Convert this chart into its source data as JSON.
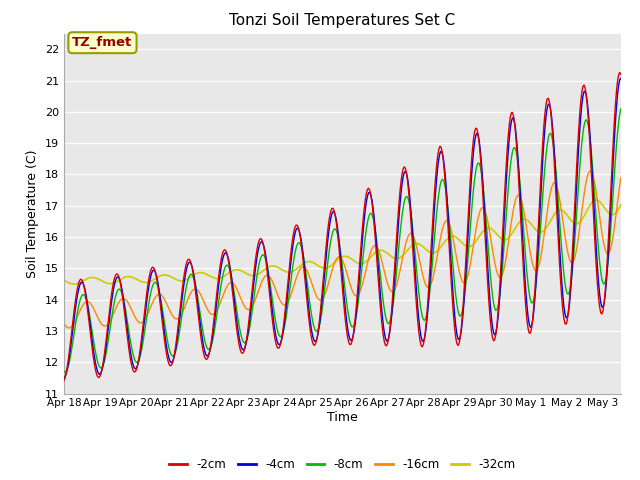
{
  "title": "Tonzi Soil Temperatures Set C",
  "xlabel": "Time",
  "ylabel": "Soil Temperature (C)",
  "ylim": [
    11.0,
    22.5
  ],
  "yticks": [
    11.0,
    12.0,
    13.0,
    14.0,
    15.0,
    16.0,
    17.0,
    18.0,
    19.0,
    20.0,
    21.0,
    22.0
  ],
  "series_colors": [
    "#dd0000",
    "#0000dd",
    "#00bb00",
    "#ff8800",
    "#cccc00"
  ],
  "series_labels": [
    "-2cm",
    "-4cm",
    "-8cm",
    "-16cm",
    "-32cm"
  ],
  "annotation_text": "TZ_fmet",
  "annotation_bg": "#ffffcc",
  "annotation_border": "#999900",
  "annotation_text_color": "#990000",
  "x_tick_labels": [
    "Apr 18",
    "Apr 19",
    "Apr 20",
    "Apr 21",
    "Apr 22",
    "Apr 23",
    "Apr 24",
    "Apr 25",
    "Apr 26",
    "Apr 27",
    "Apr 28",
    "Apr 29",
    "Apr 30",
    "May 1",
    "May 2",
    "May 3"
  ],
  "plot_bg": "#e8e8e8",
  "fig_bg": "#ffffff",
  "n_days": 15.5,
  "n_pts": 500
}
